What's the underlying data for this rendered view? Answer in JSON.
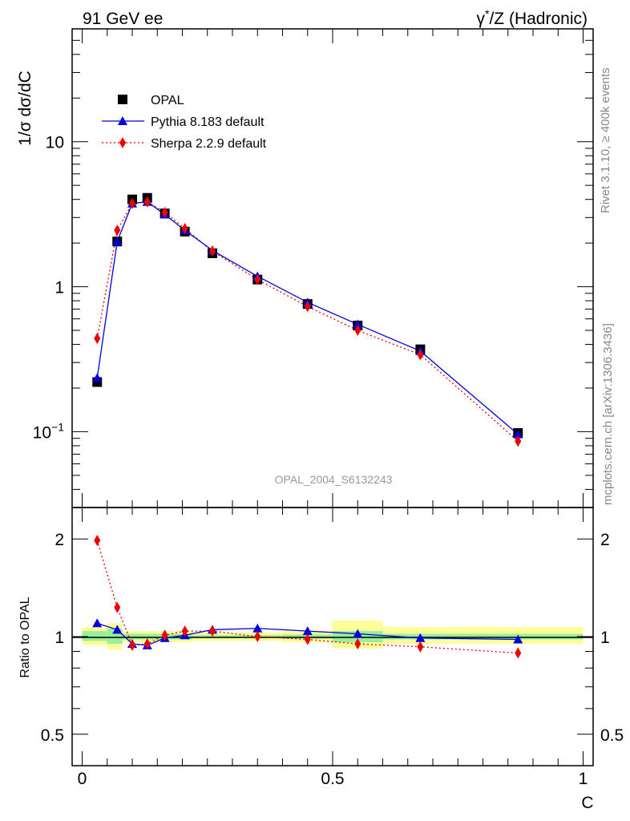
{
  "header": {
    "left_title": "91 GeV ee",
    "right_title_prefix": "γ",
    "right_title_star": "*",
    "right_title_rest": "/Z (Hadronic)"
  },
  "side_labels": {
    "rivet": "Rivet 3.1.10, ≥ 400k events",
    "mcplots": "mcplots.cern.ch [arXiv:1306.3436]"
  },
  "analysis_label": "OPAL_2004_S6132243",
  "colors": {
    "data": "#000000",
    "pythia": "#0000dd",
    "sherpa": "#ee0000",
    "band_inner": "#99ee99",
    "band_outer": "#ffff99"
  },
  "chart_data": [
    {
      "type": "scatter",
      "panel": "main",
      "ylabel": "1/σ dσ/dC",
      "yscale": "log",
      "ylim": [
        0.03,
        60
      ],
      "xlim": [
        -0.02,
        1.02
      ],
      "ytick_labels": [
        {
          "value": 0.1,
          "base": "10",
          "exp": "−1"
        },
        {
          "value": 1,
          "text": "1"
        },
        {
          "value": 10,
          "text": "10"
        }
      ],
      "legend_position": "top-left",
      "legend": [
        "OPAL",
        "Pythia 8.183 default",
        "Sherpa 2.2.9 default"
      ],
      "series": [
        {
          "name": "OPAL",
          "x": [
            0.03,
            0.07,
            0.1,
            0.13,
            0.165,
            0.205,
            0.26,
            0.35,
            0.45,
            0.55,
            0.675,
            0.87
          ],
          "y": [
            0.22,
            2.05,
            4.0,
            4.1,
            3.2,
            2.4,
            1.7,
            1.12,
            0.76,
            0.54,
            0.37,
            0.098
          ]
        },
        {
          "name": "Pythia 8.183 default",
          "x": [
            0.03,
            0.07,
            0.1,
            0.13,
            0.165,
            0.205,
            0.26,
            0.35,
            0.45,
            0.55,
            0.675,
            0.87
          ],
          "y": [
            0.235,
            2.05,
            3.75,
            3.85,
            3.15,
            2.45,
            1.78,
            1.18,
            0.78,
            0.55,
            0.36,
            0.096
          ]
        },
        {
          "name": "Sherpa 2.2.9 default",
          "x": [
            0.03,
            0.07,
            0.1,
            0.13,
            0.165,
            0.205,
            0.26,
            0.35,
            0.45,
            0.55,
            0.675,
            0.87
          ],
          "y": [
            0.44,
            2.45,
            3.75,
            3.85,
            3.25,
            2.52,
            1.76,
            1.12,
            0.73,
            0.5,
            0.34,
            0.086
          ]
        }
      ]
    },
    {
      "type": "scatter",
      "panel": "ratio",
      "ylabel": "Ratio to OPAL",
      "xlabel": "C",
      "yscale": "log",
      "ylim": [
        0.4,
        2.5
      ],
      "xlim": [
        -0.02,
        1.02
      ],
      "xtick_labels": [
        {
          "value": 0,
          "text": "0"
        },
        {
          "value": 0.5,
          "text": "0.5"
        },
        {
          "value": 1,
          "text": "1"
        }
      ],
      "ytick_labels": [
        {
          "value": 0.5,
          "text": "0.5"
        },
        {
          "value": 1,
          "text": "1"
        },
        {
          "value": 2,
          "text": "2"
        }
      ],
      "bands": [
        {
          "x0": 0.0,
          "x1": 0.05,
          "inner": [
            0.97,
            1.04
          ],
          "outer": [
            0.94,
            1.07
          ]
        },
        {
          "x0": 0.05,
          "x1": 0.08,
          "inner": [
            0.95,
            1.06
          ],
          "outer": [
            0.91,
            1.1
          ]
        },
        {
          "x0": 0.08,
          "x1": 0.18,
          "inner": [
            0.98,
            1.02
          ],
          "outer": [
            0.96,
            1.04
          ]
        },
        {
          "x0": 0.18,
          "x1": 0.22,
          "inner": [
            0.98,
            1.02
          ],
          "outer": [
            0.96,
            1.04
          ]
        },
        {
          "x0": 0.22,
          "x1": 0.4,
          "inner": [
            0.99,
            1.01
          ],
          "outer": [
            0.97,
            1.03
          ]
        },
        {
          "x0": 0.4,
          "x1": 0.5,
          "inner": [
            0.985,
            1.015
          ],
          "outer": [
            0.96,
            1.04
          ]
        },
        {
          "x0": 0.5,
          "x1": 0.6,
          "inner": [
            0.96,
            1.04
          ],
          "outer": [
            0.92,
            1.12
          ]
        },
        {
          "x0": 0.6,
          "x1": 1.0,
          "inner": [
            0.98,
            1.02
          ],
          "outer": [
            0.95,
            1.07
          ]
        }
      ],
      "series": [
        {
          "name": "Pythia 8.183 default",
          "x": [
            0.03,
            0.07,
            0.1,
            0.13,
            0.165,
            0.205,
            0.26,
            0.35,
            0.45,
            0.55,
            0.675,
            0.87
          ],
          "y": [
            1.1,
            1.05,
            0.95,
            0.94,
            0.99,
            1.01,
            1.05,
            1.06,
            1.04,
            1.02,
            0.99,
            0.98
          ]
        },
        {
          "name": "Sherpa 2.2.9 default",
          "x": [
            0.03,
            0.07,
            0.1,
            0.13,
            0.165,
            0.205,
            0.26,
            0.35,
            0.45,
            0.55,
            0.675,
            0.87
          ],
          "y": [
            1.98,
            1.23,
            0.94,
            0.95,
            1.01,
            1.04,
            1.04,
            1.0,
            0.98,
            0.95,
            0.93,
            0.89
          ]
        }
      ]
    }
  ]
}
